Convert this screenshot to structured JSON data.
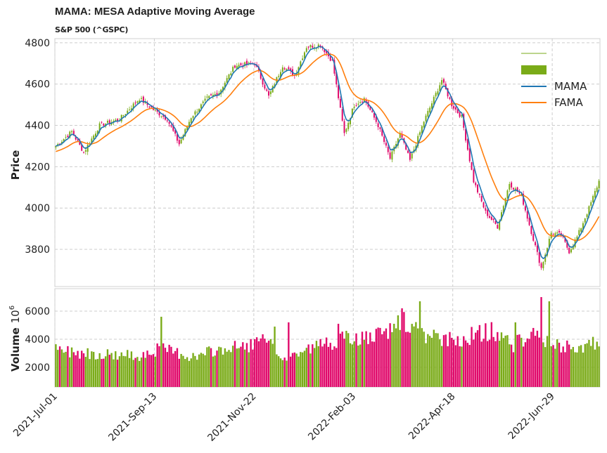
{
  "chart_data": {
    "type": "candlestick",
    "title": "MAMA: MESA Adaptive Moving Average",
    "subtitle": "S&P 500 (^GSPC)",
    "ylabel_price": "Price",
    "ylabel_volume": "Volume",
    "volume_exponent": "6",
    "price_ylim": [
      3620,
      4820
    ],
    "price_yticks": [
      3800,
      4000,
      4200,
      4400,
      4600,
      4800
    ],
    "volume_ylim": [
      600,
      7600
    ],
    "volume_yticks": [
      2000,
      4000,
      6000
    ],
    "x_tick_labels": [
      "2021-Jul-01",
      "2021-Sep-13",
      "2021-Nov-22",
      "2022-Feb-03",
      "2022-Apr-18",
      "2022-Jun-29"
    ],
    "x_tick_index": [
      0,
      50,
      100,
      150,
      200,
      250
    ],
    "n_bars": 274,
    "grid": true,
    "legend_position": "top-right",
    "legend": [
      "",
      "",
      "MAMA",
      "FAMA"
    ],
    "colors": {
      "up": "#7aab18",
      "down": "#e0086a",
      "mama": "#1f77b4",
      "fama": "#ff7f0e"
    },
    "close_anchors": [
      [
        0,
        4300
      ],
      [
        8,
        4370
      ],
      [
        14,
        4270
      ],
      [
        22,
        4400
      ],
      [
        32,
        4430
      ],
      [
        42,
        4530
      ],
      [
        50,
        4470
      ],
      [
        56,
        4430
      ],
      [
        62,
        4310
      ],
      [
        68,
        4440
      ],
      [
        76,
        4530
      ],
      [
        82,
        4560
      ],
      [
        90,
        4690
      ],
      [
        100,
        4700
      ],
      [
        107,
        4540
      ],
      [
        114,
        4690
      ],
      [
        120,
        4640
      ],
      [
        126,
        4780
      ],
      [
        133,
        4790
      ],
      [
        139,
        4710
      ],
      [
        145,
        4360
      ],
      [
        150,
        4500
      ],
      [
        155,
        4530
      ],
      [
        162,
        4400
      ],
      [
        168,
        4240
      ],
      [
        173,
        4360
      ],
      [
        178,
        4230
      ],
      [
        185,
        4420
      ],
      [
        190,
        4530
      ],
      [
        194,
        4620
      ],
      [
        199,
        4500
      ],
      [
        204,
        4440
      ],
      [
        210,
        4130
      ],
      [
        216,
        3980
      ],
      [
        222,
        3910
      ],
      [
        228,
        4120
      ],
      [
        234,
        4060
      ],
      [
        240,
        3850
      ],
      [
        244,
        3710
      ],
      [
        249,
        3880
      ],
      [
        254,
        3870
      ],
      [
        258,
        3790
      ],
      [
        262,
        3860
      ],
      [
        268,
        4000
      ],
      [
        273,
        4130
      ]
    ],
    "volume_anchors": [
      [
        0,
        3200
      ],
      [
        20,
        3000
      ],
      [
        40,
        2800
      ],
      [
        52,
        3300
      ],
      [
        60,
        3100
      ],
      [
        70,
        2700
      ],
      [
        80,
        3200
      ],
      [
        95,
        3500
      ],
      [
        105,
        3900
      ],
      [
        115,
        2600
      ],
      [
        125,
        3200
      ],
      [
        135,
        3700
      ],
      [
        145,
        4000
      ],
      [
        160,
        4100
      ],
      [
        170,
        4700
      ],
      [
        175,
        5200
      ],
      [
        185,
        4200
      ],
      [
        200,
        3900
      ],
      [
        210,
        4300
      ],
      [
        220,
        4600
      ],
      [
        230,
        3600
      ],
      [
        240,
        4400
      ],
      [
        250,
        3500
      ],
      [
        260,
        3400
      ],
      [
        273,
        3700
      ]
    ],
    "volume_spikes": [
      [
        53,
        5600
      ],
      [
        110,
        4900
      ],
      [
        117,
        5200
      ],
      [
        142,
        5100
      ],
      [
        170,
        5100
      ],
      [
        172,
        5700
      ],
      [
        174,
        6200
      ],
      [
        183,
        6700
      ],
      [
        231,
        5200
      ],
      [
        244,
        7000
      ],
      [
        248,
        6700
      ]
    ]
  }
}
